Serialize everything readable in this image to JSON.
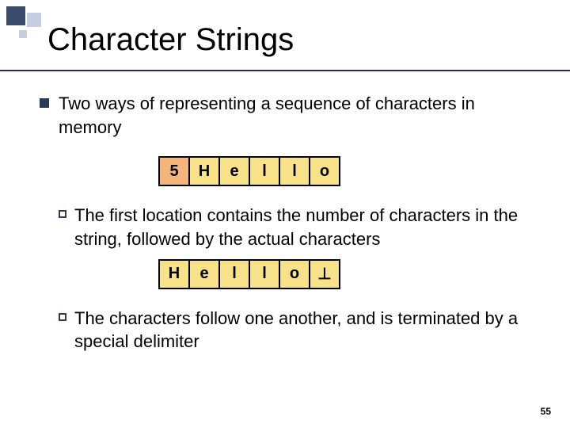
{
  "slide": {
    "title": "Character Strings",
    "page_number": "55",
    "colors": {
      "accent_dark": "#2a3a5a",
      "accent_light": "#c5cde0",
      "rule": "#222f4a",
      "cell_count_bg": "#f5b47a",
      "cell_char_bg": "#f7e28a",
      "cell_border": "#000000",
      "text": "#000000",
      "background": "#ffffff"
    },
    "bullet": "Two ways of representing a sequence of characters in memory",
    "length_prefixed": {
      "cells": [
        "5",
        "H",
        "e",
        "l",
        "l",
        "o"
      ],
      "cell_types": [
        "count",
        "char",
        "char",
        "char",
        "char",
        "char"
      ],
      "desc_prefix": "The",
      "desc": " first location contains the number of characters in the string, followed by the actual characters"
    },
    "null_terminated": {
      "cells": [
        "H",
        "e",
        "l",
        "l",
        "o",
        "⊥"
      ],
      "cell_types": [
        "char",
        "char",
        "char",
        "char",
        "char",
        "char"
      ],
      "desc_prefix": "The",
      "desc": " characters follow one another, and is terminated by a special delimiter"
    }
  }
}
